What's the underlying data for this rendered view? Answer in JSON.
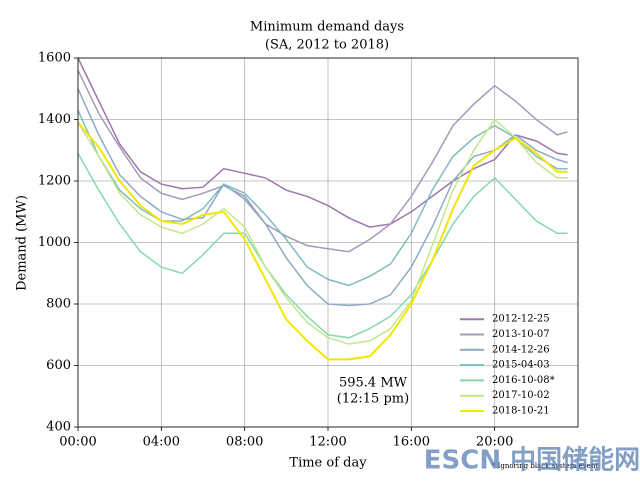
{
  "chart_data": {
    "type": "line",
    "title": "Minimum demand days",
    "subtitle": "(SA,  2012 to 2018)",
    "xlabel": "Time of day",
    "ylabel": "Demand (MW)",
    "x": [
      0,
      1,
      2,
      3,
      4,
      5,
      6,
      7,
      8,
      9,
      10,
      11,
      12,
      13,
      14,
      15,
      16,
      17,
      18,
      19,
      20,
      21,
      22,
      23,
      23.5
    ],
    "series": [
      {
        "name": "2012-12-25",
        "color": "#9b78ad",
        "values": [
          1600,
          1460,
          1320,
          1230,
          1190,
          1175,
          1180,
          1240,
          1225,
          1210,
          1170,
          1150,
          1120,
          1080,
          1050,
          1060,
          1100,
          1150,
          1200,
          1240,
          1270,
          1350,
          1330,
          1290,
          1285
        ]
      },
      {
        "name": "2013-10-07",
        "color": "#a59abb",
        "values": [
          1560,
          1420,
          1310,
          1210,
          1160,
          1140,
          1160,
          1185,
          1150,
          1060,
          1020,
          990,
          980,
          970,
          1010,
          1060,
          1150,
          1260,
          1380,
          1450,
          1510,
          1460,
          1400,
          1350,
          1360
        ]
      },
      {
        "name": "2014-12-26",
        "color": "#8faac6",
        "values": [
          1500,
          1350,
          1220,
          1150,
          1100,
          1075,
          1080,
          1190,
          1140,
          1060,
          950,
          860,
          800,
          795,
          800,
          830,
          920,
          1050,
          1200,
          1280,
          1300,
          1350,
          1300,
          1270,
          1260
        ]
      },
      {
        "name": "2015-04-03",
        "color": "#7fbcc0",
        "values": [
          1430,
          1280,
          1170,
          1110,
          1070,
          1070,
          1110,
          1190,
          1160,
          1090,
          1010,
          920,
          880,
          860,
          890,
          930,
          1030,
          1170,
          1280,
          1340,
          1380,
          1340,
          1280,
          1240,
          1240
        ]
      },
      {
        "name": "2016-10-08*",
        "color": "#86d9ad",
        "values": [
          1290,
          1170,
          1060,
          970,
          920,
          900,
          960,
          1030,
          1030,
          920,
          830,
          760,
          700,
          690,
          720,
          760,
          830,
          940,
          1060,
          1150,
          1210,
          1140,
          1070,
          1030,
          1030
        ]
      },
      {
        "name": "2017-10-02",
        "color": "#c2e88c",
        "values": [
          1390,
          1280,
          1160,
          1090,
          1050,
          1030,
          1060,
          1110,
          1050,
          920,
          820,
          740,
          690,
          670,
          680,
          720,
          810,
          990,
          1170,
          1300,
          1400,
          1340,
          1260,
          1210,
          1210
        ]
      },
      {
        "name": "2018-10-21",
        "color": "#f3e600",
        "values": [
          1390,
          1310,
          1200,
          1120,
          1070,
          1060,
          1090,
          1100,
          1010,
          880,
          750,
          680,
          620,
          620,
          630,
          700,
          800,
          940,
          1110,
          1250,
          1300,
          1340,
          1290,
          1230,
          1230
        ]
      }
    ],
    "xlim": [
      0,
      24
    ],
    "xticks": [
      {
        "value": 0,
        "label": "00:00"
      },
      {
        "value": 4,
        "label": "04:00"
      },
      {
        "value": 8,
        "label": "08:00"
      },
      {
        "value": 12,
        "label": "12:00"
      },
      {
        "value": 16,
        "label": "16:00"
      },
      {
        "value": 20,
        "label": "20:00"
      }
    ],
    "ylim": [
      400,
      1600
    ],
    "yticks": [
      400,
      600,
      800,
      1000,
      1200,
      1400,
      1600
    ],
    "grid": true,
    "legend": "lower right",
    "annotations": [
      "595.4 MW",
      "(12:15 pm)"
    ],
    "footnote": "* Ignoring black system event",
    "watermark": "ESCN 中国储能网"
  }
}
